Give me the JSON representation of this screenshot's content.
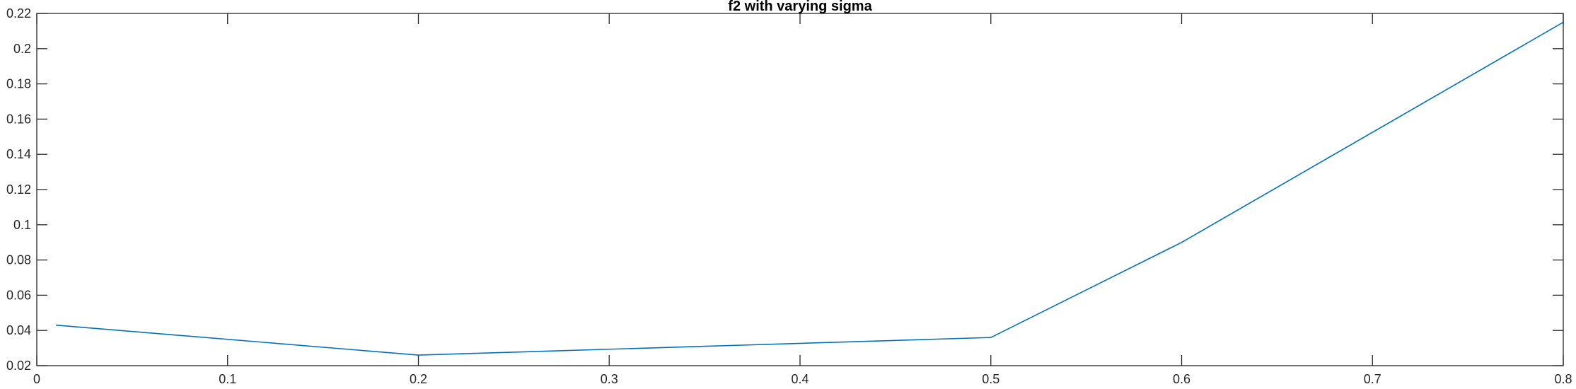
{
  "chart_data": {
    "type": "line",
    "title": "f2 with varying sigma",
    "xlabel": "",
    "ylabel": "",
    "xlim": [
      0,
      0.8
    ],
    "ylim": [
      0.02,
      0.22
    ],
    "x_ticks": [
      0,
      0.1,
      0.2,
      0.3,
      0.4,
      0.5,
      0.6,
      0.7,
      0.8
    ],
    "x_tick_labels": [
      "0",
      "0.1",
      "0.2",
      "0.3",
      "0.4",
      "0.5",
      "0.6",
      "0.7",
      "0.8"
    ],
    "y_ticks": [
      0.02,
      0.04,
      0.06,
      0.08,
      0.1,
      0.12,
      0.14,
      0.16,
      0.18,
      0.2,
      0.22
    ],
    "y_tick_labels": [
      "0.02",
      "0.04",
      "0.06",
      "0.08",
      "0.1",
      "0.12",
      "0.14",
      "0.16",
      "0.18",
      "0.2",
      "0.22"
    ],
    "grid": false,
    "series": [
      {
        "color": "#0072BD",
        "x": [
          0.01,
          0.2,
          0.5,
          0.6,
          0.8
        ],
        "y": [
          0.043,
          0.026,
          0.036,
          0.09,
          0.215
        ]
      }
    ]
  }
}
